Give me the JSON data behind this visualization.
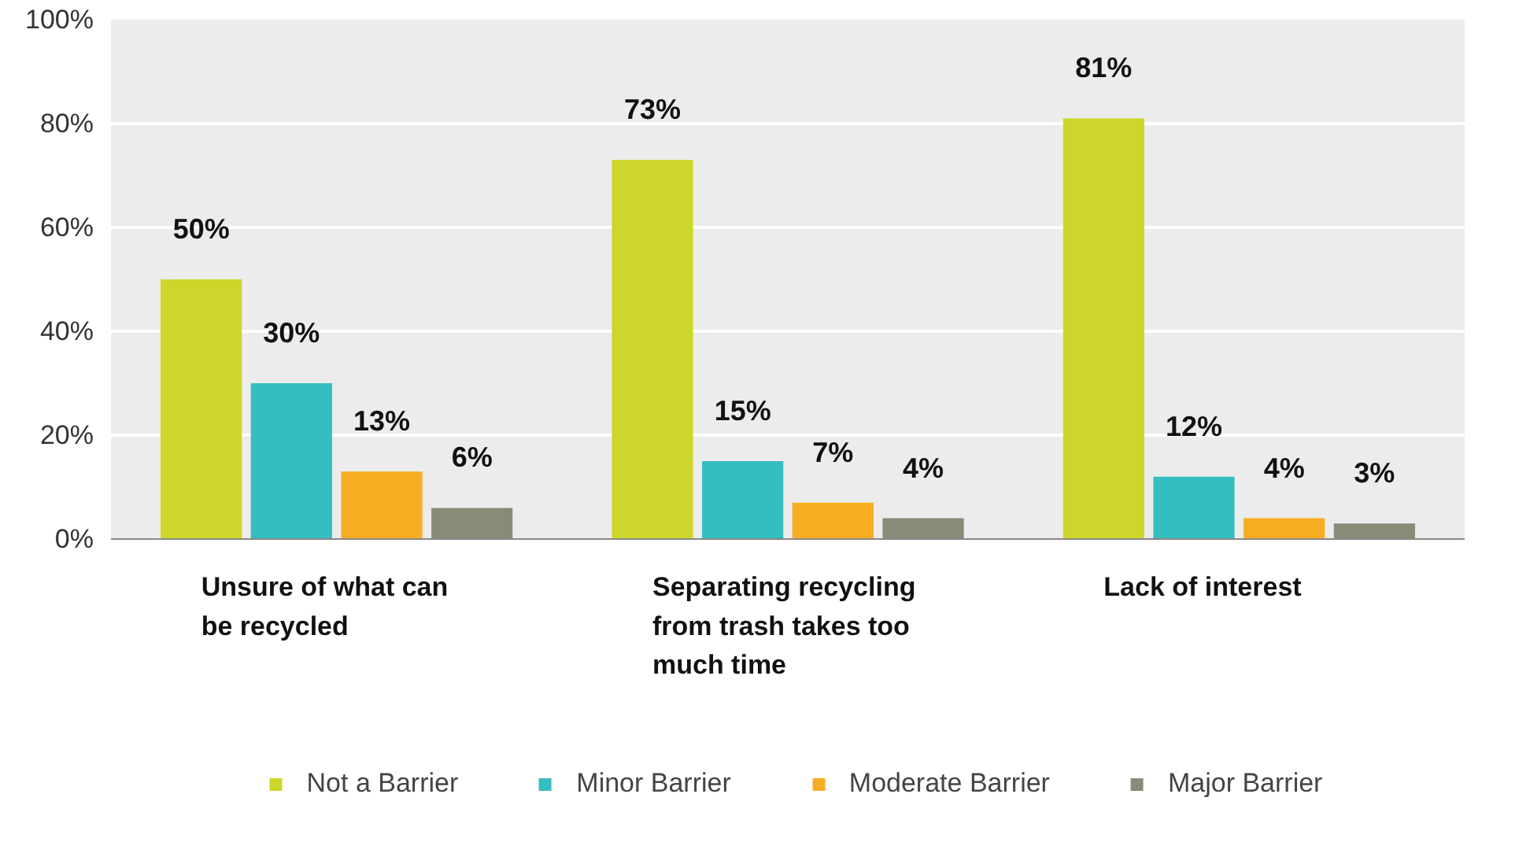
{
  "chart_data": {
    "type": "bar",
    "categories": [
      "Unsure of what can be recycled",
      "Separating recycling from trash takes too much time",
      "Lack of interest"
    ],
    "series": [
      {
        "name": "Not a Barrier",
        "color": "#cdd62a",
        "values": [
          50,
          73,
          81
        ],
        "value_labels": [
          "50%",
          "73%",
          "81%"
        ]
      },
      {
        "name": "Minor Barrier",
        "color": "#35bec0",
        "values": [
          30,
          15,
          12
        ],
        "value_labels": [
          "30%",
          "15%",
          "12%"
        ]
      },
      {
        "name": "Moderate Barrier",
        "color": "#f7ae22",
        "values": [
          13,
          7,
          4
        ],
        "value_labels": [
          "13%",
          "7%",
          "4%"
        ]
      },
      {
        "name": "Major Barrier",
        "color": "#8a8a78",
        "values": [
          6,
          4,
          3
        ],
        "value_labels": [
          "6%",
          "4%",
          "3%"
        ]
      }
    ],
    "ylim": [
      0,
      100
    ],
    "yticks": [
      {
        "value": 0,
        "label": "0%"
      },
      {
        "value": 20,
        "label": "20%"
      },
      {
        "value": 40,
        "label": "40%"
      },
      {
        "value": 60,
        "label": "60%"
      },
      {
        "value": 80,
        "label": "80%"
      },
      {
        "value": 100,
        "label": "100%"
      }
    ],
    "grid": "y",
    "legend": "bottom"
  }
}
